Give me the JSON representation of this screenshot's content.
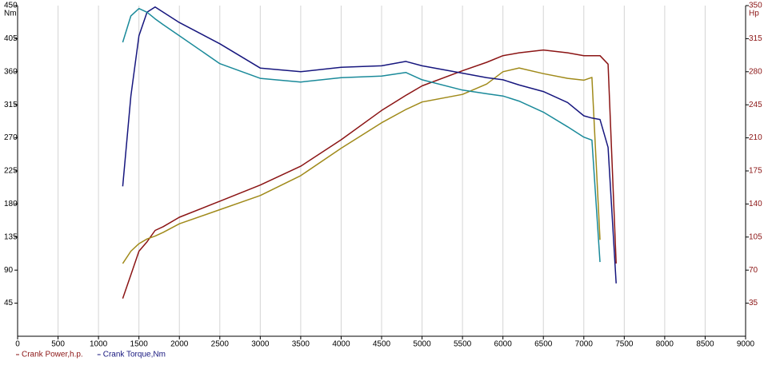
{
  "chart_data": {
    "type": "line",
    "y_label": "Nm",
    "y2_label": "Hp",
    "x": [
      1300,
      1400,
      1500,
      1600,
      1700,
      1800,
      2000,
      2500,
      3000,
      3500,
      4000,
      4500,
      4800,
      5000,
      5500,
      5800,
      6000,
      6200,
      6500,
      6800,
      7000,
      7100,
      7200,
      7300,
      7400
    ],
    "series": [
      {
        "name": "Crank Power,h.p.",
        "color": "#8b1414",
        "axis": "y2",
        "values": [
          40,
          65,
          90,
          100,
          112,
          116,
          126,
          143,
          160,
          180,
          208,
          239,
          255,
          265,
          281,
          290,
          297,
          300,
          303,
          300,
          297,
          297,
          297,
          288,
          77
        ]
      },
      {
        "color": "#a08a1a",
        "axis": "y2",
        "values": [
          77,
          90,
          98,
          103,
          106,
          110,
          119,
          134,
          149,
          170,
          199,
          226,
          240,
          248,
          256,
          267,
          280,
          284,
          278,
          273,
          271,
          274,
          102,
          null,
          null
        ]
      },
      {
        "name": "Crank Torque,Nm",
        "color": "#16167e",
        "values": [
          204,
          327,
          409,
          441,
          448,
          441,
          427,
          398,
          365,
          360,
          366,
          368,
          374,
          368,
          358,
          352,
          349,
          342,
          333,
          318,
          300,
          297,
          295,
          257,
          72
        ]
      },
      {
        "color": "#1a8a9a",
        "values": [
          400,
          436,
          446,
          441,
          432,
          424,
          409,
          371,
          351,
          346,
          352,
          354,
          359,
          349,
          335,
          330,
          327,
          320,
          305,
          285,
          271,
          267,
          101,
          null,
          null
        ]
      }
    ],
    "xlim": [
      0,
      9000
    ],
    "xticks": [
      0,
      500,
      1000,
      1500,
      2000,
      2500,
      3000,
      3500,
      4000,
      4500,
      5000,
      5500,
      6000,
      6500,
      7000,
      7500,
      8000,
      8500,
      9000
    ],
    "ylim": [
      0,
      450
    ],
    "yticks": [
      45,
      90,
      135,
      180,
      225,
      270,
      315,
      360,
      405,
      450
    ],
    "y2lim": [
      0,
      350
    ],
    "y2ticks": [
      35,
      70,
      105,
      140,
      175,
      210,
      245,
      280,
      315,
      350
    ],
    "grid": "x"
  }
}
